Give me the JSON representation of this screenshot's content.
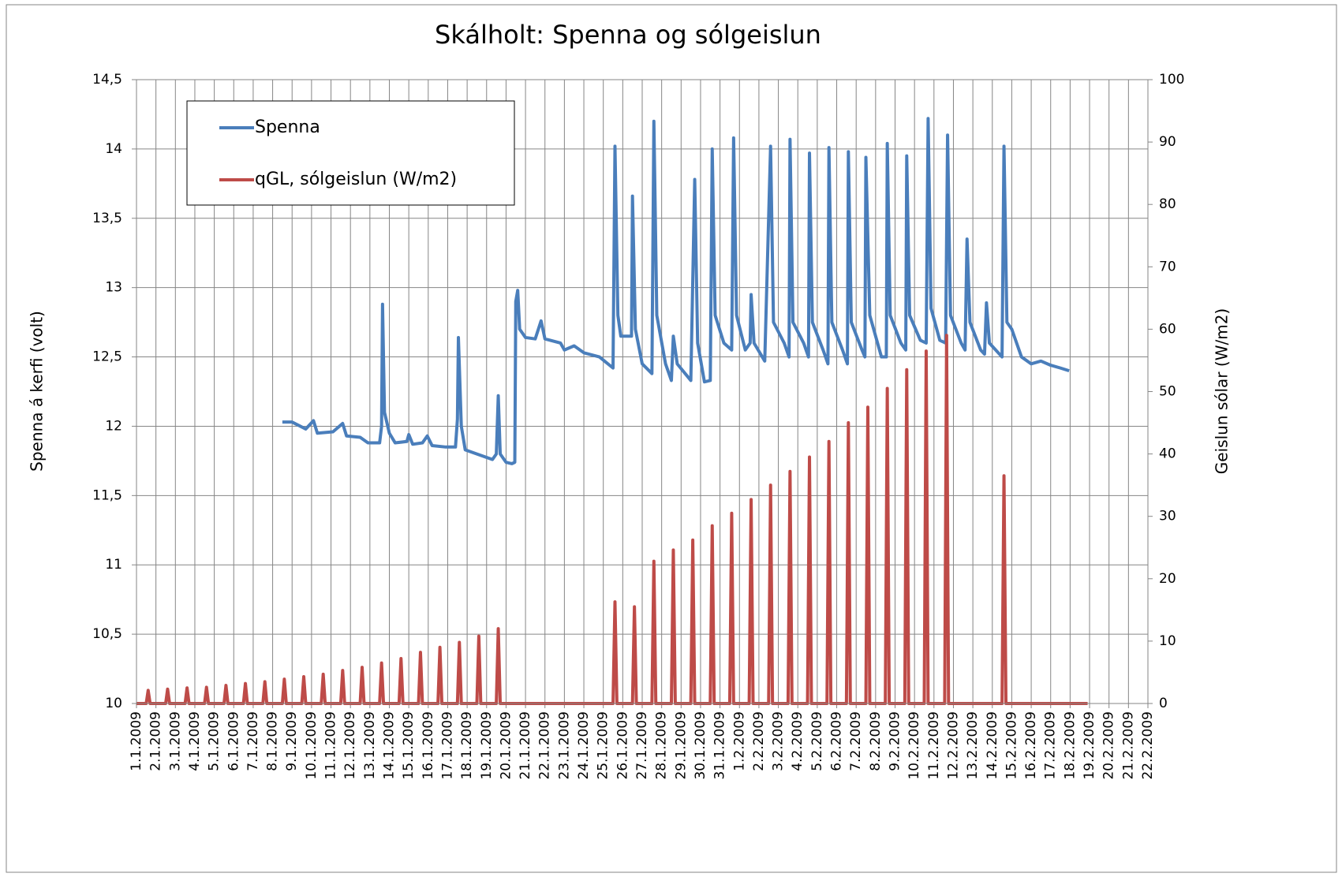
{
  "chart_data": {
    "type": "line",
    "title": "Skálholt: Spenna og sólgeislun",
    "ylabel": "Spenna á kerfi (volt)",
    "y2label": "Geislun sólar (W/m2)",
    "xlim": [
      0,
      52
    ],
    "ylim": [
      10,
      14.5
    ],
    "y2lim": [
      0,
      100
    ],
    "grid": true,
    "legend": "upper-left",
    "yticks": [
      10,
      {
        "value": 10.5,
        "label": "10,5"
      },
      11,
      {
        "value": 11.5,
        "label": "11,5"
      },
      12,
      {
        "value": 12.5,
        "label": "12,5"
      },
      13,
      {
        "value": 13.5,
        "label": "13,5"
      },
      14,
      {
        "value": 14.5,
        "label": "14,5"
      }
    ],
    "y2ticks": [
      0,
      10,
      20,
      30,
      40,
      50,
      60,
      70,
      80,
      90,
      100
    ],
    "xticks": [
      {
        "value": 0,
        "label": "1.1.2009"
      },
      {
        "value": 1,
        "label": "2.1.2009"
      },
      {
        "value": 2,
        "label": "3.1.2009"
      },
      {
        "value": 3,
        "label": "4.1.2009"
      },
      {
        "value": 4,
        "label": "5.1.2009"
      },
      {
        "value": 5,
        "label": "6.1.2009"
      },
      {
        "value": 6,
        "label": "7.1.2009"
      },
      {
        "value": 7,
        "label": "8.1.2009"
      },
      {
        "value": 8,
        "label": "9.1.2009"
      },
      {
        "value": 9,
        "label": "10.1.2009"
      },
      {
        "value": 10,
        "label": "11.1.2009"
      },
      {
        "value": 11,
        "label": "12.1.2009"
      },
      {
        "value": 12,
        "label": "13.1.2009"
      },
      {
        "value": 13,
        "label": "14.1.2009"
      },
      {
        "value": 14,
        "label": "15.1.2009"
      },
      {
        "value": 15,
        "label": "16.1.2009"
      },
      {
        "value": 16,
        "label": "17.1.2009"
      },
      {
        "value": 17,
        "label": "18.1.2009"
      },
      {
        "value": 18,
        "label": "19.1.2009"
      },
      {
        "value": 19,
        "label": "20.1.2009"
      },
      {
        "value": 20,
        "label": "21.1.2009"
      },
      {
        "value": 21,
        "label": "22.1.2009"
      },
      {
        "value": 22,
        "label": "23.1.2009"
      },
      {
        "value": 23,
        "label": "24.1.2009"
      },
      {
        "value": 24,
        "label": "25.1.2009"
      },
      {
        "value": 25,
        "label": "26.1.2009"
      },
      {
        "value": 26,
        "label": "27.1.2009"
      },
      {
        "value": 27,
        "label": "28.1.2009"
      },
      {
        "value": 28,
        "label": "29.1.2009"
      },
      {
        "value": 29,
        "label": "30.1.2009"
      },
      {
        "value": 30,
        "label": "31.1.2009"
      },
      {
        "value": 31,
        "label": "1.2.2009"
      },
      {
        "value": 32,
        "label": "2.2.2009"
      },
      {
        "value": 33,
        "label": "3.2.2009"
      },
      {
        "value": 34,
        "label": "4.2.2009"
      },
      {
        "value": 35,
        "label": "5.2.2009"
      },
      {
        "value": 36,
        "label": "6.2.2009"
      },
      {
        "value": 37,
        "label": "7.2.2009"
      },
      {
        "value": 38,
        "label": "8.2.2009"
      },
      {
        "value": 39,
        "label": "9.2.2009"
      },
      {
        "value": 40,
        "label": "10.2.2009"
      },
      {
        "value": 41,
        "label": "11.2.2009"
      },
      {
        "value": 42,
        "label": "12.2.2009"
      },
      {
        "value": 43,
        "label": "13.2.2009"
      },
      {
        "value": 44,
        "label": "14.2.2009"
      },
      {
        "value": 45,
        "label": "15.2.2009"
      },
      {
        "value": 46,
        "label": "16.2.2009"
      },
      {
        "value": 47,
        "label": "17.2.2009"
      },
      {
        "value": 48,
        "label": "18.2.2009"
      },
      {
        "value": 49,
        "label": "19.2.2009"
      },
      {
        "value": 50,
        "label": "20.2.2009"
      },
      {
        "value": 51,
        "label": "21.2.2009"
      },
      {
        "value": 52,
        "label": "22.2.2009"
      }
    ],
    "series": [
      {
        "name": "Spenna",
        "color": "#4a7ebb",
        "x": [
          7.5,
          8.0,
          8.7,
          9.1,
          9.3,
          10.1,
          10.6,
          10.8,
          11.5,
          11.9,
          12.5,
          12.6,
          12.65,
          12.75,
          13.0,
          13.3,
          13.9,
          14.0,
          14.2,
          14.7,
          14.95,
          15.2,
          15.9,
          16.4,
          16.5,
          16.55,
          16.7,
          16.9,
          17.5,
          18.3,
          18.5,
          18.6,
          18.7,
          19.0,
          19.3,
          19.45,
          19.5,
          19.6,
          19.7,
          20.0,
          20.5,
          20.8,
          21.0,
          21.8,
          22.0,
          22.5,
          23.0,
          23.8,
          24.5,
          24.6,
          24.75,
          24.9,
          25.45,
          25.5,
          25.65,
          26.0,
          26.5,
          26.6,
          26.75,
          27.2,
          27.5,
          27.6,
          27.8,
          28.5,
          28.7,
          28.85,
          29.2,
          29.5,
          29.6,
          29.75,
          30.2,
          30.6,
          30.7,
          30.85,
          31.3,
          31.55,
          31.6,
          31.75,
          32.3,
          32.6,
          32.75,
          33.3,
          33.55,
          33.6,
          33.75,
          34.3,
          34.55,
          34.6,
          34.75,
          35.3,
          35.55,
          35.6,
          35.75,
          36.3,
          36.55,
          36.6,
          36.75,
          37.3,
          37.45,
          37.5,
          37.7,
          38.3,
          38.55,
          38.6,
          38.75,
          39.3,
          39.55,
          39.6,
          39.75,
          40.3,
          40.6,
          40.7,
          40.85,
          41.3,
          41.6,
          41.7,
          41.85,
          42.4,
          42.6,
          42.7,
          42.85,
          43.4,
          43.6,
          43.7,
          43.85,
          44.5,
          44.6,
          44.75,
          45.0,
          45.5,
          46.0,
          46.5,
          47.0,
          47.5,
          47.95
        ],
        "values": [
          12.03,
          12.03,
          11.98,
          12.04,
          11.95,
          11.96,
          12.02,
          11.93,
          11.92,
          11.88,
          11.88,
          12.0,
          12.88,
          12.1,
          11.95,
          11.88,
          11.89,
          11.94,
          11.87,
          11.88,
          11.93,
          11.86,
          11.85,
          11.85,
          12.05,
          12.64,
          12.0,
          11.83,
          11.8,
          11.76,
          11.8,
          12.22,
          11.8,
          11.74,
          11.73,
          11.74,
          12.9,
          12.98,
          12.7,
          12.64,
          12.63,
          12.76,
          12.63,
          12.6,
          12.55,
          12.58,
          12.53,
          12.5,
          12.42,
          14.02,
          12.8,
          12.65,
          12.65,
          13.66,
          12.7,
          12.45,
          12.38,
          14.2,
          12.8,
          12.45,
          12.33,
          12.65,
          12.45,
          12.33,
          13.78,
          12.6,
          12.32,
          12.33,
          14.0,
          12.8,
          12.6,
          12.55,
          14.08,
          12.8,
          12.55,
          12.6,
          12.95,
          12.6,
          12.47,
          14.02,
          12.75,
          12.6,
          12.5,
          14.07,
          12.75,
          12.6,
          12.5,
          13.97,
          12.75,
          12.55,
          12.45,
          14.01,
          12.75,
          12.55,
          12.45,
          13.98,
          12.75,
          12.55,
          12.5,
          13.94,
          12.8,
          12.5,
          12.5,
          14.04,
          12.8,
          12.6,
          12.55,
          13.95,
          12.8,
          12.62,
          12.6,
          14.22,
          12.85,
          12.62,
          12.6,
          14.1,
          12.8,
          12.6,
          12.55,
          13.35,
          12.75,
          12.55,
          12.52,
          12.89,
          12.6,
          12.5,
          14.02,
          12.75,
          12.7,
          12.5,
          12.45,
          12.47,
          12.44,
          12.42,
          12.4
        ]
      },
      {
        "name": "qGL, sólgeislun (W/m2)",
        "color": "#be4b48",
        "axis": "y2",
        "x": [
          0,
          0.5,
          0.6,
          0.7,
          1.5,
          1.6,
          1.7,
          2.5,
          2.6,
          2.7,
          3.5,
          3.6,
          3.7,
          4.5,
          4.6,
          4.7,
          5.5,
          5.6,
          5.7,
          6.5,
          6.6,
          6.7,
          7.5,
          7.6,
          7.7,
          8.5,
          8.6,
          8.7,
          9.5,
          9.6,
          9.7,
          10.5,
          10.6,
          10.7,
          11.5,
          11.6,
          11.7,
          12.5,
          12.6,
          12.7,
          13.5,
          13.6,
          13.7,
          14.5,
          14.6,
          14.7,
          15.5,
          15.6,
          15.7,
          16.5,
          16.6,
          16.7,
          17.5,
          17.6,
          17.7,
          18.5,
          18.6,
          18.7,
          24.5,
          24.6,
          24.7,
          25.5,
          25.6,
          25.7,
          26.5,
          26.6,
          26.7,
          27.5,
          27.6,
          27.7,
          28.5,
          28.6,
          28.7,
          29.5,
          29.6,
          29.7,
          30.5,
          30.6,
          30.7,
          31.5,
          31.6,
          31.7,
          32.5,
          32.6,
          32.7,
          33.5,
          33.6,
          33.7,
          34.5,
          34.6,
          34.7,
          35.5,
          35.6,
          35.7,
          36.5,
          36.6,
          36.7,
          37.5,
          37.6,
          37.7,
          38.5,
          38.6,
          38.7,
          39.5,
          39.6,
          39.7,
          40.5,
          40.6,
          40.7,
          41.55,
          41.65,
          41.75,
          44.5,
          44.6,
          44.7,
          48.9
        ],
        "values": [
          0,
          0,
          2.1,
          0,
          0,
          2.3,
          0,
          0,
          2.5,
          0,
          0,
          2.6,
          0,
          0,
          2.9,
          0,
          0,
          3.2,
          0,
          0,
          3.5,
          0,
          0,
          3.9,
          0,
          0,
          4.3,
          0,
          0,
          4.7,
          0,
          0,
          5.3,
          0,
          0,
          5.8,
          0,
          0,
          6.5,
          0,
          0,
          7.2,
          0,
          0,
          8.2,
          0,
          0,
          9.0,
          0,
          0,
          9.8,
          0,
          0,
          10.8,
          0,
          0,
          12.0,
          0,
          0,
          16.3,
          0,
          0,
          15.5,
          0,
          0,
          22.8,
          0,
          0,
          24.6,
          0,
          0,
          26.2,
          0,
          0,
          28.5,
          0,
          0,
          30.5,
          0,
          0,
          32.7,
          0,
          0,
          35.0,
          0,
          0,
          37.2,
          0,
          0,
          39.5,
          0,
          0,
          42.0,
          0,
          0,
          45.0,
          0,
          0,
          47.5,
          0,
          0,
          50.5,
          0,
          0,
          53.5,
          0,
          0,
          56.5,
          0,
          0,
          59.0,
          0,
          0,
          36.5,
          0,
          0
        ]
      }
    ]
  }
}
